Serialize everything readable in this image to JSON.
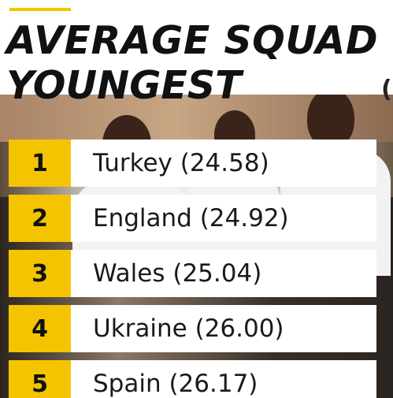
{
  "graphic": {
    "title": "AVERAGE SQUAD",
    "subtitle": "YOUNGEST",
    "edge_glyph": "(",
    "accent_color": "#f5c400"
  },
  "rankings": [
    {
      "rank": "1",
      "label": "Turkey (24.58)"
    },
    {
      "rank": "2",
      "label": "England (24.92)"
    },
    {
      "rank": "3",
      "label": "Wales (25.04)"
    },
    {
      "rank": "4",
      "label": "Ukraine (26.00)"
    },
    {
      "rank": "5",
      "label": "Spain (26.17)"
    }
  ]
}
